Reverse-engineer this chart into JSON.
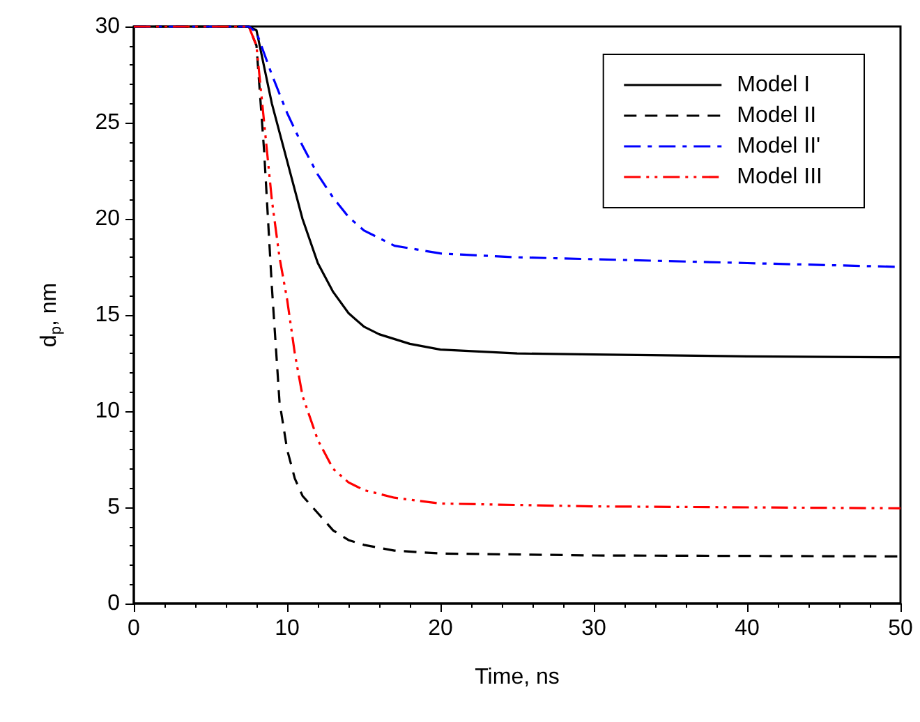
{
  "chart_data": {
    "type": "line",
    "xlabel": "Time, ns",
    "ylabel": "d$_{p}$, nm",
    "xlim": [
      0,
      50
    ],
    "xticks": [
      0,
      10,
      20,
      30,
      40,
      50
    ],
    "ylim": [
      0,
      30
    ],
    "yticks": [
      0,
      5,
      10,
      15,
      20,
      25,
      30
    ],
    "grid": false,
    "legend": "top right",
    "marker": "none",
    "series": [
      {
        "name": "Model I",
        "color": "#000000",
        "line_style": "solid",
        "x": [
          0,
          7.5,
          8,
          9,
          10,
          11,
          12,
          13,
          14,
          15,
          16,
          18,
          20,
          25,
          30,
          40,
          50
        ],
        "values": [
          30,
          30,
          29.8,
          26,
          23,
          20,
          17.7,
          16.2,
          15.1,
          14.4,
          14,
          13.5,
          13.2,
          13,
          12.95,
          12.85,
          12.8
        ]
      },
      {
        "name": "Model II",
        "color": "#000000",
        "line_style": "dashed",
        "x": [
          0,
          7.5,
          8,
          8.5,
          9,
          9.5,
          10,
          10.5,
          11,
          12,
          13,
          14,
          15,
          17,
          20,
          30,
          50
        ],
        "values": [
          30,
          30,
          29,
          23.5,
          16.5,
          10.5,
          8,
          6.5,
          5.6,
          4.7,
          3.8,
          3.3,
          3.05,
          2.75,
          2.6,
          2.5,
          2.45
        ]
      },
      {
        "name": "Model II'",
        "color": "#0000ff",
        "line_style": "dashdot",
        "x": [
          0,
          7.5,
          8,
          9,
          10,
          11,
          12,
          13,
          14,
          15,
          16,
          17,
          20,
          25,
          30,
          40,
          50
        ],
        "values": [
          30,
          30,
          29.7,
          27.5,
          25.5,
          23.8,
          22.3,
          21.1,
          20.1,
          19.4,
          19,
          18.6,
          18.2,
          18,
          17.9,
          17.7,
          17.5
        ]
      },
      {
        "name": "Model III",
        "color": "#ff0000",
        "line_style": "dashdotdot",
        "x": [
          0,
          7.5,
          8,
          8.5,
          9,
          9.5,
          10,
          10.5,
          11,
          12,
          13,
          14,
          15,
          17,
          20,
          30,
          50
        ],
        "values": [
          30,
          30,
          29,
          25,
          21,
          18,
          15.8,
          13,
          10.8,
          8.5,
          7,
          6.3,
          5.9,
          5.5,
          5.2,
          5.05,
          4.95
        ]
      }
    ]
  }
}
